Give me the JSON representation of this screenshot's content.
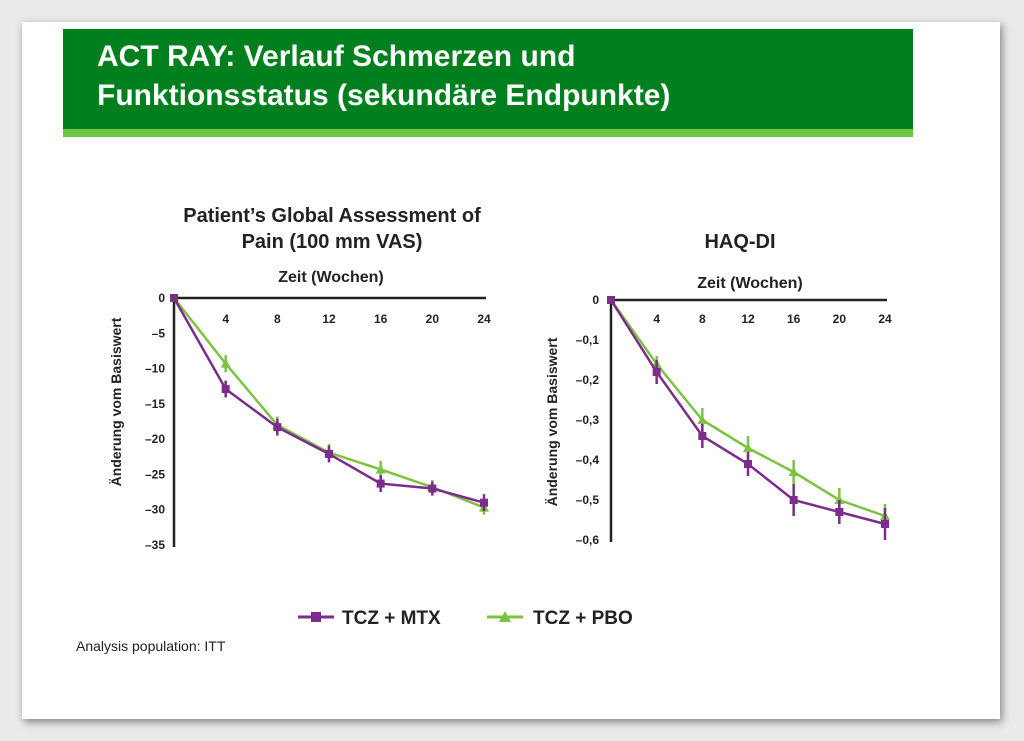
{
  "slide": {
    "title_lines": [
      "ACT RAY: Verlauf Schmerzen und",
      "Funktionsstatus (sekundäre Endpunkte)"
    ],
    "footnote": "Analysis population: ITT",
    "colors": {
      "banner": "#007f1f",
      "stripe": "#6cc63f"
    }
  },
  "legend": [
    {
      "label": "TCZ + MTX",
      "marker": "square",
      "color": "#7b2d8b"
    },
    {
      "label": "TCZ + PBO",
      "marker": "triangle",
      "color": "#7dc242"
    }
  ],
  "chart_data": [
    {
      "type": "line",
      "title": [
        "Patient’s Global Assessment of",
        "Pain (100 mm VAS)"
      ],
      "xlabel": "Zeit (Wochen)",
      "ylabel": "Änderung vom Basiswert",
      "x": [
        0,
        4,
        8,
        12,
        16,
        20,
        24
      ],
      "x_ticks": [
        "4",
        "8",
        "12",
        "16",
        "20",
        "24"
      ],
      "y_ticks": [
        "0",
        "–5",
        "–10",
        "–15",
        "–20",
        "–25",
        "–30",
        "–35"
      ],
      "ylim": [
        -35,
        0
      ],
      "y_tick_values": [
        0,
        -5,
        -10,
        -15,
        -20,
        -25,
        -30,
        -35
      ],
      "series": [
        {
          "name": "TCZ + MTX",
          "values": [
            0,
            -12.9,
            -18.3,
            -22.1,
            -26.3,
            -27.0,
            -29.0
          ],
          "errors": [
            0,
            1.2,
            1.2,
            1.2,
            1.2,
            1.0,
            1.2
          ]
        },
        {
          "name": "TCZ + PBO",
          "values": [
            0,
            -9.3,
            -18.0,
            -21.9,
            -24.3,
            -26.8,
            -29.7
          ],
          "errors": [
            0,
            1.2,
            1.2,
            1.2,
            1.2,
            1.0,
            1.0
          ]
        }
      ]
    },
    {
      "type": "line",
      "title": [
        "HAQ-DI"
      ],
      "xlabel": "Zeit (Wochen)",
      "ylabel": "Änderung vom Basiswert",
      "x": [
        0,
        4,
        8,
        12,
        16,
        20,
        24
      ],
      "x_ticks": [
        "4",
        "8",
        "12",
        "16",
        "20",
        "24"
      ],
      "y_ticks": [
        "0",
        "–0,1",
        "–0,2",
        "–0,3",
        "–0,4",
        "–0,5",
        "–0,6"
      ],
      "ylim": [
        -0.6,
        0
      ],
      "y_tick_values": [
        0,
        -0.1,
        -0.2,
        -0.3,
        -0.4,
        -0.5,
        -0.6
      ],
      "series": [
        {
          "name": "TCZ + MTX",
          "values": [
            0,
            -0.18,
            -0.34,
            -0.41,
            -0.5,
            -0.53,
            -0.56
          ],
          "errors": [
            0,
            0.03,
            0.03,
            0.03,
            0.04,
            0.03,
            0.04
          ]
        },
        {
          "name": "TCZ + PBO",
          "values": [
            0,
            -0.16,
            -0.3,
            -0.37,
            -0.43,
            -0.5,
            -0.54
          ],
          "errors": [
            0,
            0.02,
            0.03,
            0.03,
            0.03,
            0.03,
            0.03
          ]
        }
      ]
    }
  ]
}
